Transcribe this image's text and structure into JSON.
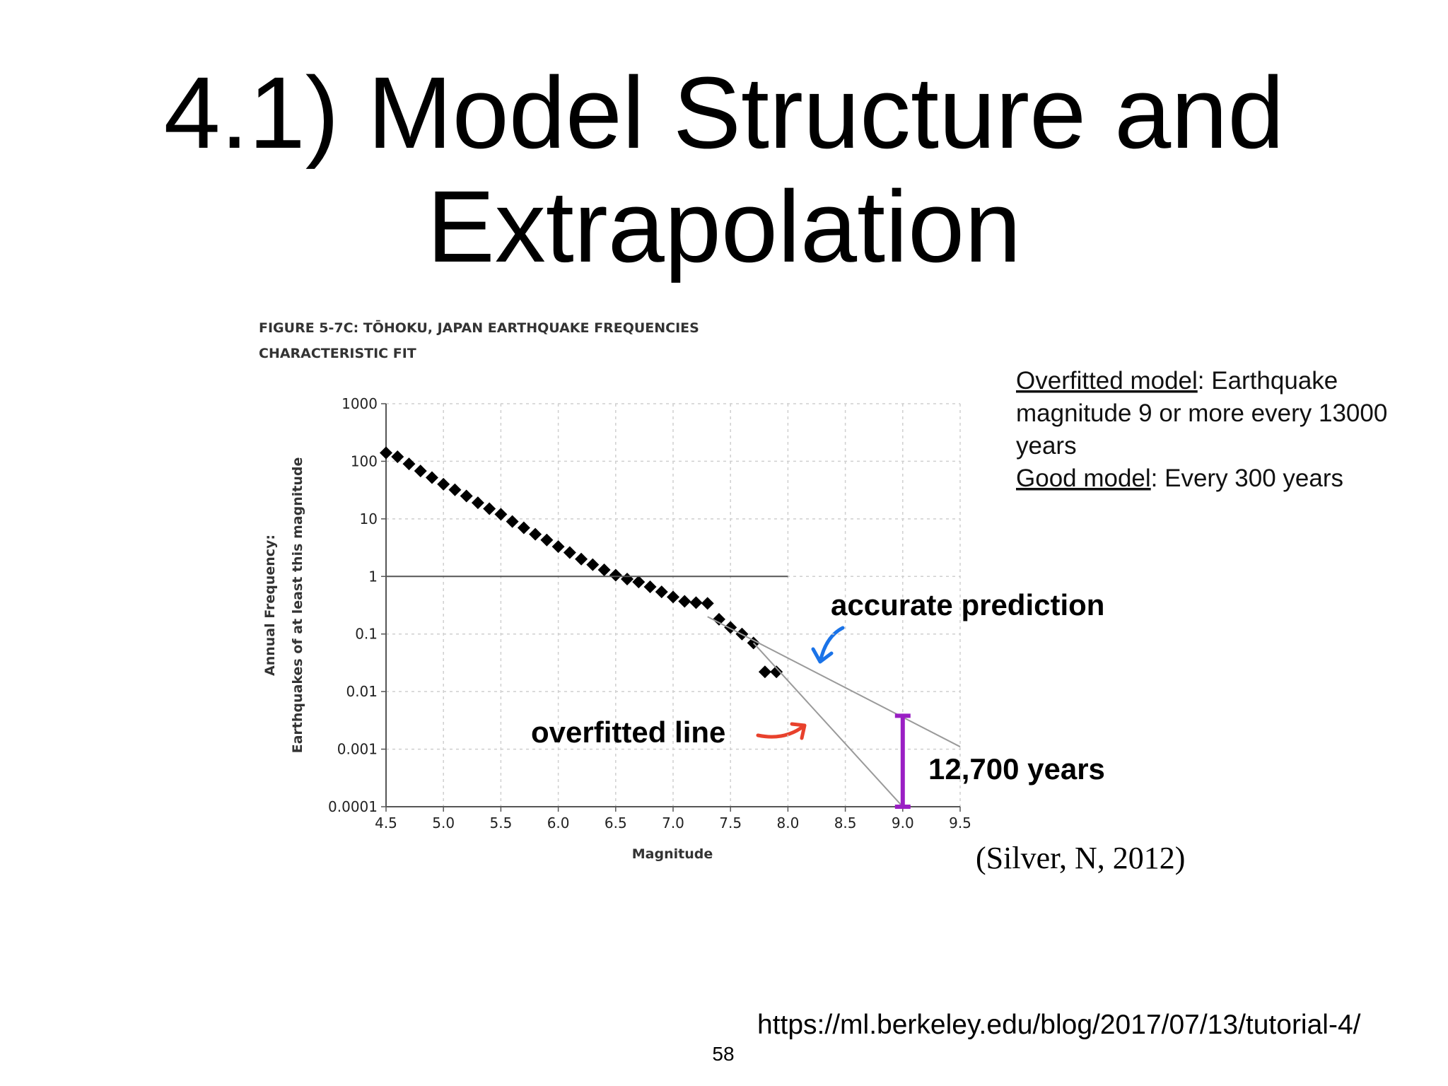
{
  "slide": {
    "title": [
      "4.1) Model Structure and",
      "Extrapolation"
    ],
    "notes": [
      {
        "label": "Overfitted model",
        "lines": [
          ": Earthquake",
          "magnitude 9 or more every 13000",
          "years"
        ]
      },
      {
        "label": "Good model",
        "lines": [
          ": Every 300 years"
        ]
      }
    ],
    "citation": "(Silver, N, 2012)",
    "url": "https://ml.berkeley.edu/blog/2017/07/13/tutorial-4/",
    "page_number": 58
  },
  "chart_data": {
    "type": "scatter",
    "title": "FIGURE 5-7C: TŌHOKU, JAPAN EARTHQUAKE FREQUENCIES",
    "subtitle": "CHARACTERISTIC FIT",
    "x_label": "Magnitude",
    "y_label": [
      "Annual Frequency:",
      "Earthquakes of at least this magnitude"
    ],
    "y_log": true,
    "grid": true,
    "xlim": [
      4.5,
      9.5
    ],
    "ylim": [
      0.0001,
      1000
    ],
    "xticks": [
      4.5,
      {
        "value": 5,
        "label": "5.0"
      },
      5.5,
      {
        "value": 6,
        "label": "6.0"
      },
      6.5,
      {
        "value": 7,
        "label": "7.0"
      },
      7.5,
      {
        "value": 8,
        "label": "8.0"
      },
      8.5,
      {
        "value": 9,
        "label": "9.0"
      },
      9.5
    ],
    "yticks": [
      1000,
      100,
      10,
      1,
      0.1,
      0.01,
      0.001,
      0.0001
    ],
    "series": [
      {
        "mode": "markers",
        "color": "#000000",
        "x": [
          4.5,
          4.6,
          4.7,
          4.8,
          4.9,
          5.0,
          5.1,
          5.2,
          5.3,
          5.4,
          5.5,
          5.6,
          5.7,
          5.8,
          5.9,
          6.0,
          6.1,
          6.2,
          6.3,
          6.4,
          6.5,
          6.6,
          6.7,
          6.8,
          6.9,
          7.0,
          7.1,
          7.2,
          7.3,
          7.4,
          7.5,
          7.6,
          7.7,
          7.8,
          7.9
        ],
        "values": [
          140,
          120,
          90,
          68,
          52,
          40,
          32,
          25,
          19,
          15,
          12,
          9,
          7,
          5.4,
          4.3,
          3.3,
          2.6,
          2.0,
          1.6,
          1.3,
          1.05,
          0.9,
          0.8,
          0.66,
          0.54,
          0.44,
          0.37,
          0.35,
          0.34,
          0.18,
          0.13,
          0.1,
          0.07,
          0.022,
          0.022
        ]
      },
      {
        "mode": "line",
        "color": "#555555",
        "x": [
          4.5,
          8.0
        ],
        "values": [
          1,
          1
        ]
      },
      {
        "mode": "line",
        "color": "#9a9a9a",
        "x": [
          7.3,
          9.5
        ],
        "values": [
          0.2,
          0.0011
        ]
      },
      {
        "mode": "line",
        "color": "#9a9a9a",
        "x": [
          7.7,
          9.0
        ],
        "values": [
          0.07,
          0.0001
        ]
      }
    ],
    "annotations": [
      {
        "text": "accurate prediction",
        "color": "#1a73e8"
      },
      {
        "text": "overfitted line",
        "color": "#e8412c"
      },
      {
        "text": "12,700 years",
        "color": "#9a1fc4",
        "x": 9.0,
        "range": [
          0.0001,
          0.0038
        ]
      }
    ]
  }
}
